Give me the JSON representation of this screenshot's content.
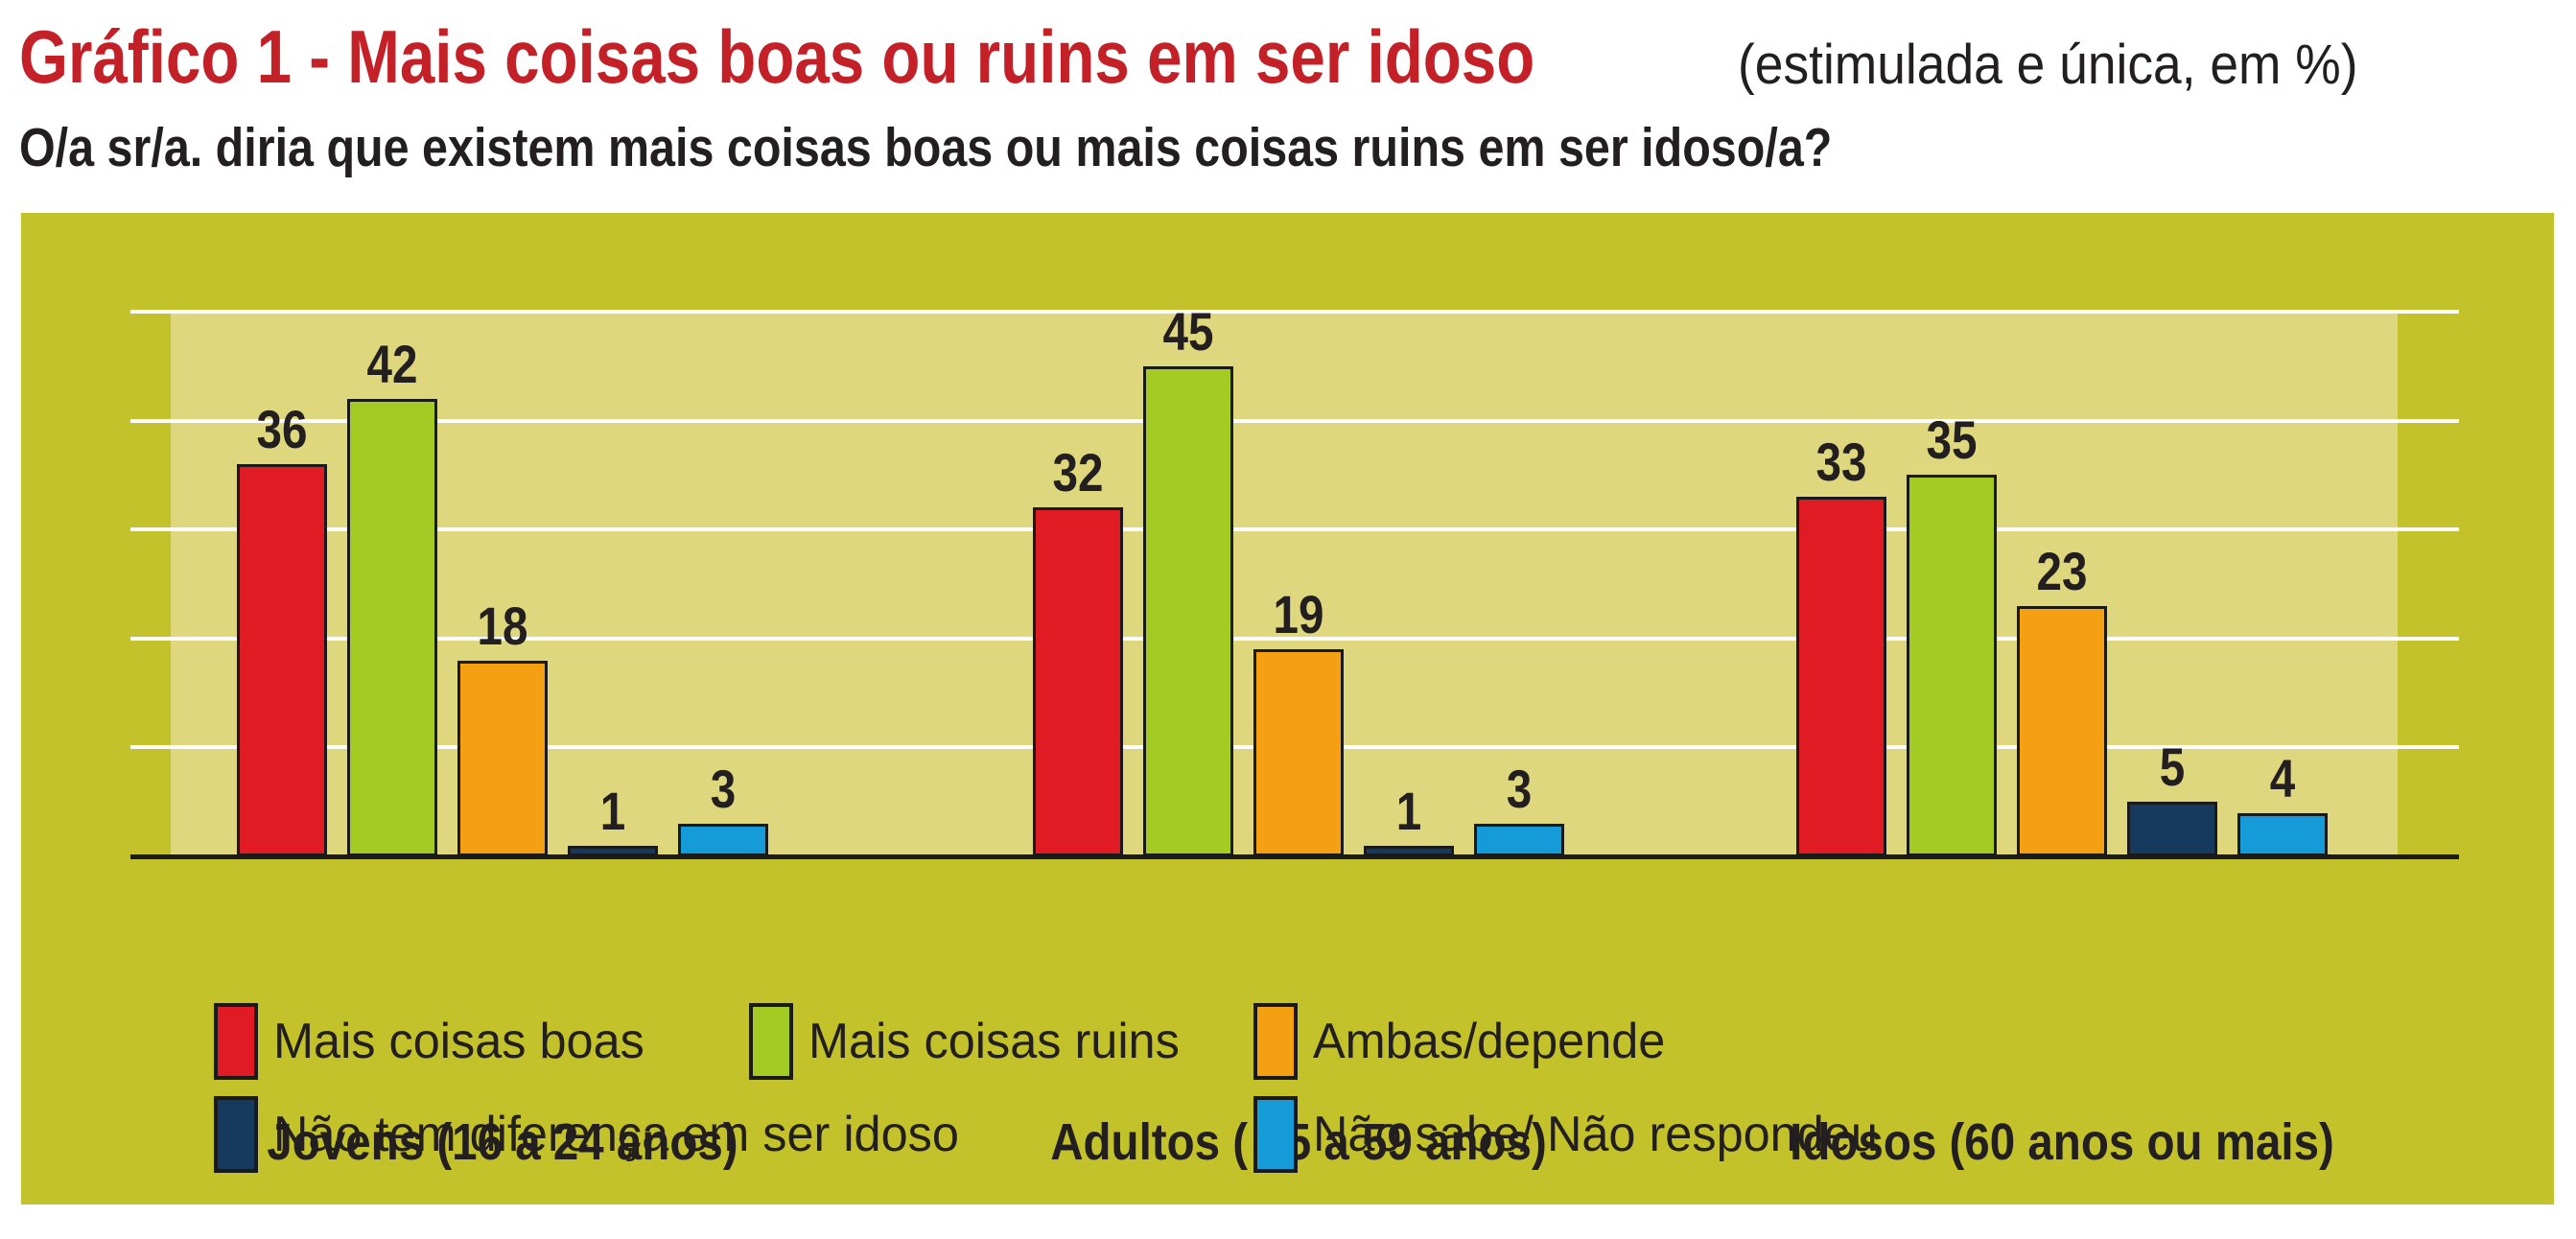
{
  "title": {
    "main": "Gráfico 1 - Mais coisas boas ou ruins em ser idoso",
    "suffix": "(estimulada e única, em %)"
  },
  "subtitle": "O/a sr/a. diria que existem mais coisas boas ou mais coisas ruins em ser idoso/a?",
  "colors": {
    "title_red": "#c32127",
    "text_black": "#231f20",
    "panel_olive": "#c4c22b",
    "plot_light": "#ded77d",
    "gridline_white": "#ffffff",
    "outline_black": "#1a1a1a"
  },
  "chart_data": {
    "type": "bar",
    "title": "Gráfico 1 - Mais coisas boas ou ruins em ser idoso (estimulada e única, em %)",
    "xlabel": "",
    "ylabel": "%",
    "ylim": [
      0,
      50
    ],
    "gridlines": [
      10,
      20,
      30,
      40,
      50
    ],
    "grid": true,
    "legend_position": "bottom",
    "categories": [
      "Jovens (16 a 24 anos)",
      "Adultos ( 25 a 59 anos)",
      "Idosos (60 anos ou mais)"
    ],
    "series": [
      {
        "name": "Mais coisas boas",
        "color": "#e11b23",
        "values": [
          36,
          32,
          33
        ]
      },
      {
        "name": "Mais coisas ruins",
        "color": "#a3cb24",
        "values": [
          42,
          45,
          35
        ]
      },
      {
        "name": "Ambas/depende",
        "color": "#f5a013",
        "values": [
          18,
          19,
          23
        ]
      },
      {
        "name": "Não tem diferença em ser idoso",
        "color": "#153a5e",
        "values": [
          1,
          1,
          5
        ]
      },
      {
        "name": "Não sabe/ Não respondeu",
        "color": "#149bd8",
        "values": [
          3,
          3,
          4
        ]
      }
    ],
    "legend_rows": [
      [
        0,
        1,
        2
      ],
      [
        3,
        4
      ]
    ]
  }
}
